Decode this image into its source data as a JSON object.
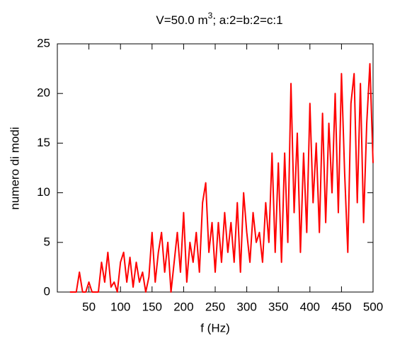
{
  "chart_data": {
    "type": "line",
    "title": [
      "V=50.0 m",
      "3",
      "; a:2=b:2=c:1"
    ],
    "x_label": "f (Hz)",
    "y_label": "numero di modi",
    "xlim": [
      0,
      500
    ],
    "ylim": [
      0,
      25
    ],
    "xticks": [
      50,
      100,
      150,
      200,
      250,
      300,
      350,
      400,
      450,
      500
    ],
    "yticks": [
      0,
      5,
      10,
      15,
      20,
      25
    ],
    "grid": false,
    "x": [
      20,
      25,
      30,
      35,
      40,
      45,
      50,
      55,
      60,
      65,
      70,
      75,
      80,
      85,
      90,
      95,
      100,
      105,
      110,
      115,
      120,
      125,
      130,
      135,
      140,
      145,
      150,
      155,
      160,
      165,
      170,
      175,
      180,
      185,
      190,
      195,
      200,
      205,
      210,
      215,
      220,
      225,
      230,
      235,
      240,
      245,
      250,
      255,
      260,
      265,
      270,
      275,
      280,
      285,
      290,
      295,
      300,
      305,
      310,
      315,
      320,
      325,
      330,
      335,
      340,
      345,
      350,
      355,
      360,
      365,
      370,
      375,
      380,
      385,
      390,
      395,
      400,
      405,
      410,
      415,
      420,
      425,
      430,
      435,
      440,
      445,
      450,
      455,
      460,
      465,
      470,
      475,
      480,
      485,
      490,
      495,
      500
    ],
    "series": [
      {
        "color": "#ff0000",
        "values": [
          0,
          0,
          0,
          2,
          0,
          0,
          1,
          0,
          0,
          0,
          3,
          1,
          4,
          0.5,
          1,
          0,
          3,
          4,
          1,
          3.5,
          0.5,
          3,
          1,
          2,
          0,
          1.5,
          6,
          1,
          4,
          6,
          2,
          5,
          0,
          3,
          6,
          2,
          8,
          1,
          5,
          3,
          6,
          2,
          9,
          11,
          4,
          7,
          2,
          7,
          3,
          8,
          4,
          7,
          3,
          9,
          2,
          10,
          6,
          3,
          8,
          5,
          6,
          3,
          9,
          5,
          14,
          4,
          13,
          3,
          14,
          5,
          21,
          8,
          16,
          4,
          14,
          6,
          19,
          9,
          15,
          6,
          18,
          7,
          17,
          10,
          20,
          8,
          22,
          12,
          4,
          19,
          22,
          9,
          21,
          7,
          17,
          23,
          13
        ]
      }
    ]
  }
}
